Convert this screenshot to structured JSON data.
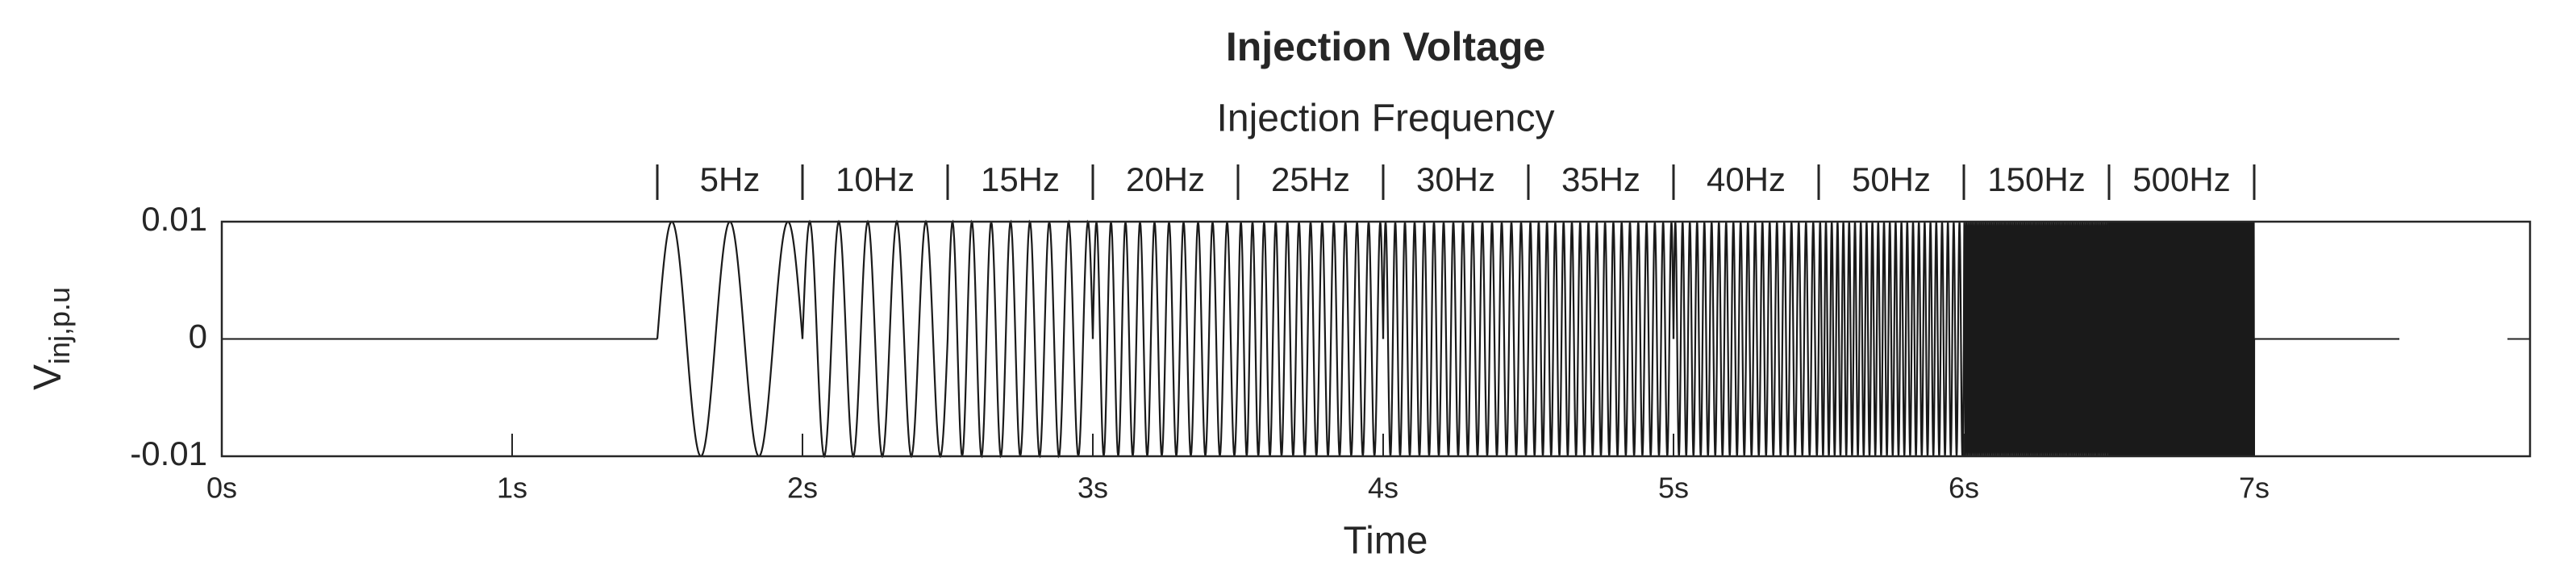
{
  "chart_data": {
    "type": "line",
    "title": "Injection Voltage",
    "subtitle": "Injection Frequency",
    "xlabel": "Time",
    "ylabel": "V",
    "ylabel_subscript": "inj,p.u",
    "color": "#1a1a1a",
    "xlim": [
      0,
      7.95
    ],
    "xticks": [
      {
        "value": 0,
        "label": "0s"
      },
      {
        "value": 1,
        "label": "1s"
      },
      {
        "value": 2,
        "label": "2s"
      },
      {
        "value": 3,
        "label": "3s"
      },
      {
        "value": 4,
        "label": "4s"
      },
      {
        "value": 5,
        "label": "5s"
      },
      {
        "value": 6,
        "label": "6s"
      },
      {
        "value": 7,
        "label": "7s"
      }
    ],
    "ylim": [
      -0.01,
      0.01
    ],
    "yticks": [
      -0.01,
      0,
      0.01
    ],
    "signal_range": [
      0,
      7.5
    ],
    "segments": [
      {
        "label": "5Hz",
        "frequency": 5,
        "start": 1.5,
        "end": 2.0,
        "amplitude": 0.01
      },
      {
        "label": "10Hz",
        "frequency": 10,
        "start": 2.0,
        "end": 2.5,
        "amplitude": 0.01
      },
      {
        "label": "15Hz",
        "frequency": 15,
        "start": 2.5,
        "end": 3.0,
        "amplitude": 0.01
      },
      {
        "label": "20Hz",
        "frequency": 20,
        "start": 3.0,
        "end": 3.5,
        "amplitude": 0.01
      },
      {
        "label": "25Hz",
        "frequency": 25,
        "start": 3.5,
        "end": 4.0,
        "amplitude": 0.01
      },
      {
        "label": "30Hz",
        "frequency": 30,
        "start": 4.0,
        "end": 4.5,
        "amplitude": 0.01
      },
      {
        "label": "35Hz",
        "frequency": 35,
        "start": 4.5,
        "end": 5.0,
        "amplitude": 0.01
      },
      {
        "label": "40Hz",
        "frequency": 40,
        "start": 5.0,
        "end": 5.5,
        "amplitude": 0.01
      },
      {
        "label": "50Hz",
        "frequency": 50,
        "start": 5.5,
        "end": 6.0,
        "amplitude": 0.01
      },
      {
        "label": "150Hz",
        "frequency": 150,
        "start": 6.0,
        "end": 6.5,
        "amplitude": 0.01
      },
      {
        "label": "500Hz",
        "frequency": 500,
        "start": 6.5,
        "end": 7.0,
        "amplitude": 0.01
      }
    ]
  }
}
